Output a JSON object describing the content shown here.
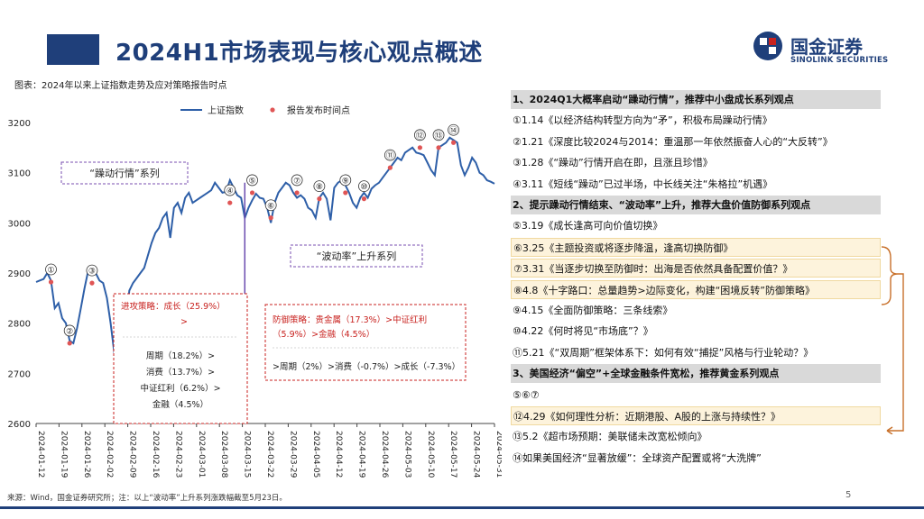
{
  "header": {
    "title": "2024H1市场表现与核心观点概述"
  },
  "logo": {
    "name_cn": "国金证券",
    "name_en": "SINOLINK SECURITIES"
  },
  "chart_caption": "图表：2024年以来上证指数走势及应对策略报告时点",
  "chart_data": {
    "type": "line",
    "legend": {
      "series_label": "上证指数",
      "marker_label": "报告发布时间点",
      "placement": "top"
    },
    "ylim": [
      2600,
      3200
    ],
    "yticks": [
      "2600",
      "2700",
      "2800",
      "2900",
      "3000",
      "3100",
      "3200"
    ],
    "xticks": [
      "2024-01-12",
      "2024-01-19",
      "2024-01-26",
      "2024-02-02",
      "2024-02-09",
      "2024-02-16",
      "2024-02-23",
      "2024-03-01",
      "2024-03-08",
      "2024-03-15",
      "2024-03-22",
      "2024-03-29",
      "2024-04-05",
      "2024-04-12",
      "2024-04-19",
      "2024-04-26",
      "2024-05-03",
      "2024-05-10",
      "2024-05-17",
      "2024-05-24",
      "2024-05-31"
    ],
    "series": [
      {
        "color": "#2e5fa8",
        "values": [
          2882,
          2885,
          2888,
          2900,
          2885,
          2830,
          2840,
          2810,
          2800,
          2765,
          2760,
          2790,
          2830,
          2870,
          2905,
          2910,
          2900,
          2885,
          2880,
          2850,
          2800,
          2740,
          2720,
          2705,
          2790,
          2865,
          2880,
          2890,
          2900,
          2910,
          2935,
          2960,
          2980,
          2990,
          3010,
          3020,
          2970,
          3030,
          3040,
          3020,
          3050,
          3060,
          3040,
          3045,
          3050,
          3055,
          3060,
          3065,
          3080,
          3070,
          3060,
          3062,
          3085,
          3070,
          3055,
          3050,
          3010,
          3030,
          3045,
          3058,
          3050,
          3048,
          3030,
          3000,
          3040,
          3060,
          3070,
          3080,
          3075,
          3060,
          3050,
          3055,
          3048,
          3030,
          3025,
          3010,
          3050,
          3060,
          3048,
          3005,
          3070,
          3080,
          3085,
          3075,
          3060,
          3040,
          3030,
          3050,
          3060,
          3050,
          3068,
          3075,
          3080,
          3090,
          3100,
          3110,
          3120,
          3130,
          3125,
          3140,
          3145,
          3150,
          3140,
          3138,
          3135,
          3120,
          3105,
          3095,
          3150,
          3155,
          3160,
          3170,
          3165,
          3160,
          3115,
          3095,
          3110,
          3130,
          3120,
          3100,
          3095,
          3085,
          3082,
          3078
        ]
      }
    ],
    "markers": [
      {
        "label": "①",
        "value": 2882
      },
      {
        "label": "②",
        "value": 2760
      },
      {
        "label": "③",
        "value": 2880
      },
      {
        "label": "④",
        "value": 3040
      },
      {
        "label": "⑤",
        "value": 3060
      },
      {
        "label": "⑥",
        "value": 3010
      },
      {
        "label": "⑦",
        "value": 3060
      },
      {
        "label": "⑧",
        "value": 3048
      },
      {
        "label": "⑨",
        "value": 3060
      },
      {
        "label": "⑩",
        "value": 3048
      },
      {
        "label": "⑪",
        "value": 3110
      },
      {
        "label": "⑫",
        "value": 3150
      },
      {
        "label": "⑬",
        "value": 3150
      },
      {
        "label": "⑭",
        "value": 3160
      }
    ],
    "annotations": {
      "phase1": "“躁动行情”系列",
      "phase2": "“波动率”上升系列",
      "box1": {
        "title": "进攻策略：成长（25.9%）",
        "arrow": ">",
        "lines": [
          "周期（18.2%）>",
          "消费（13.7%）>",
          "中证红利（6.2%）>",
          "金融（4.5%）"
        ]
      },
      "box2": {
        "line1": "防御策略：贵金属（17.3%）>中证红利",
        "line2": "（5.9%）>金融（4.5%）",
        "line3": ">周期（2%）>消费（-0.7%）>成长（-7.3%）"
      }
    },
    "grid": false,
    "colors": {
      "line": "#2e5fa8",
      "marker": "#e05555",
      "box": "#c8221f",
      "phase_box": "#7a4fb0",
      "divider": "#6a4caf"
    }
  },
  "rows": [
    {
      "text": "1、2024Q1大概率启动“躁动行情”，推荐中小盘成长系列观点",
      "type": "section"
    },
    {
      "text": "①1.14《以经济结构转型方向为“矛”，积极布局躁动行情》",
      "type": "item"
    },
    {
      "text": "②1.21《深度比较2024与2014：重温那一年依然振奋人心的“大反转”》",
      "type": "item"
    },
    {
      "text": "③1.28《“躁动”行情开启在即，且涨且珍惜》",
      "type": "item"
    },
    {
      "text": "④3.11《短线“躁动”已过半场，中长线关注“朱格拉”机遇》",
      "type": "item"
    },
    {
      "text": "2、提示躁动行情结束、“波动率”上升，推荐大盘价值防御系列观点",
      "type": "section"
    },
    {
      "text": "⑤3.19《成长逢高可向价值切换》",
      "type": "item"
    },
    {
      "text": "⑥3.25《主题投资或将逐步降温，逢高切换防御》",
      "type": "hl"
    },
    {
      "text": "⑦3.31《当逐步切换至防御时：出海是否依然具备配置价值？》",
      "type": "hl"
    },
    {
      "text": "⑧4.8《十字路口：总量趋势>边际变化，构建“困境反转”防御策略》",
      "type": "hl"
    },
    {
      "text": "⑨4.15《全面防御策略：三条线索》",
      "type": "item"
    },
    {
      "text": "⑩4.22《何时将见“市场底”？》",
      "type": "item"
    },
    {
      "text": "⑪5.21《“双周期”框架体系下：如何有效“捕捉”风格与行业轮动？》",
      "type": "item"
    },
    {
      "text": "3、美国经济“偏空”+全球金融条件宽松，推荐黄金系列观点",
      "type": "section"
    },
    {
      "text": "⑤⑥⑦",
      "type": "item"
    },
    {
      "text": "⑫4.29《如何理性分析：近期港股、A股的上涨与持续性？》",
      "type": "hl"
    },
    {
      "text": "⑬5.2《超市场预期：美联储未改宽松倾向》",
      "type": "item"
    },
    {
      "text": "⑭如果美国经济“显著放缓”：全球资产配置或将“大洗牌”",
      "type": "item"
    }
  ],
  "source": "来源：Wind，国金证券研究所；注：以上“波动率”上升系列涨跌幅截至5月23日。",
  "page_number": "5"
}
